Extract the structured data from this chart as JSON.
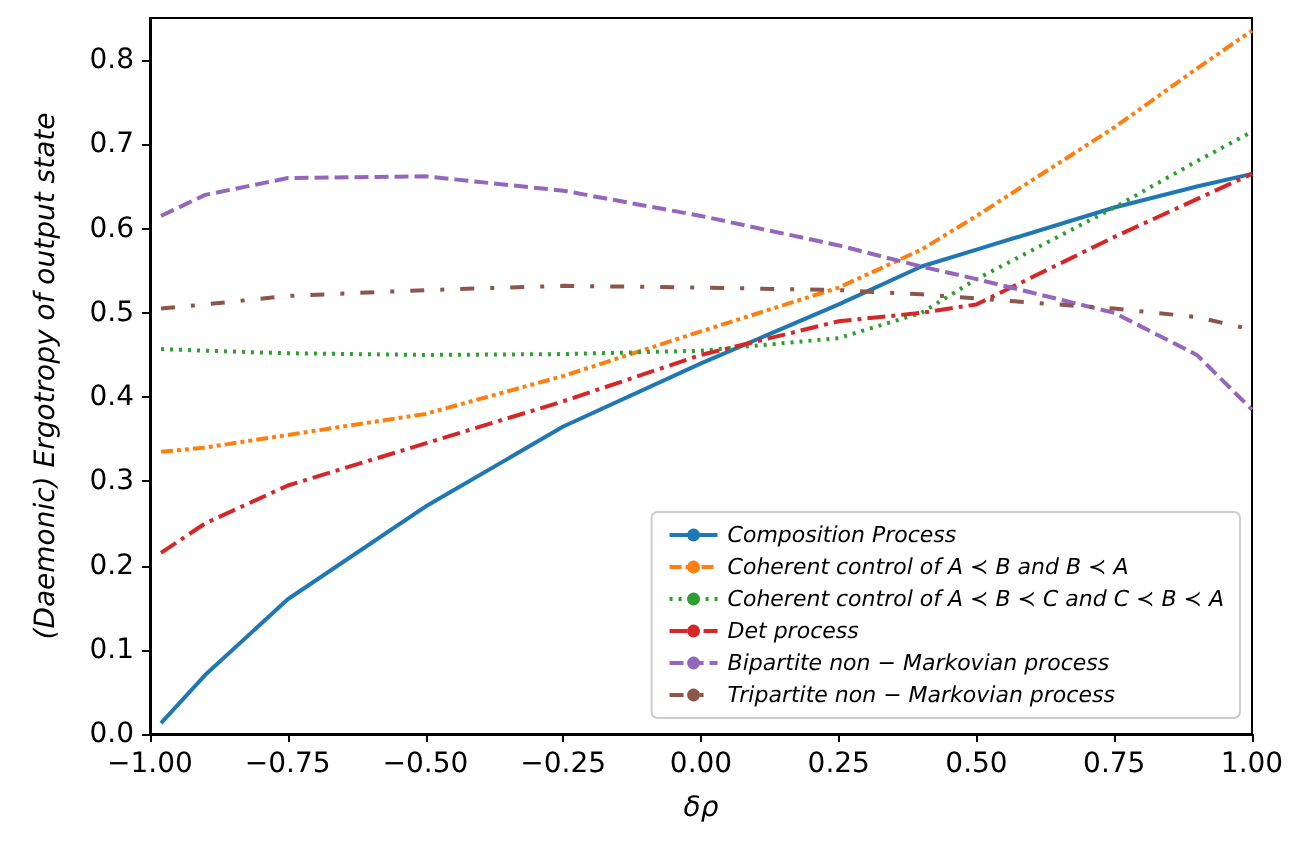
{
  "chart_data": {
    "type": "line",
    "xlabel": "δρ",
    "ylabel": "(Daemonic) Ergotropy of output state",
    "x": [
      -0.98,
      -0.9,
      -0.75,
      -0.5,
      -0.25,
      0,
      0.25,
      0.4,
      0.5,
      0.75,
      0.9,
      1
    ],
    "series": [
      {
        "name": "Composition Process",
        "color": "#1f77b4",
        "line_style": "solid",
        "values": [
          0.013,
          0.07,
          0.16,
          0.27,
          0.365,
          0.44,
          0.51,
          0.555,
          0.575,
          0.625,
          0.65,
          0.665
        ]
      },
      {
        "name": "Coherent control of A ≺ B and B ≺ A",
        "color": "#ff7f0e",
        "line_style": "dashdotdot",
        "values": [
          0.335,
          0.34,
          0.355,
          0.38,
          0.425,
          0.478,
          0.53,
          0.575,
          0.615,
          0.72,
          0.79,
          0.835
        ]
      },
      {
        "name": "Coherent control of A ≺ B ≺ C and C ≺ B ≺ A",
        "color": "#2ca02c",
        "line_style": "dotted",
        "values": [
          0.457,
          0.455,
          0.452,
          0.45,
          0.451,
          0.455,
          0.47,
          0.5,
          0.54,
          0.625,
          0.68,
          0.715
        ]
      },
      {
        "name": "Det process",
        "color": "#d62728",
        "line_style": "dashdot",
        "values": [
          0.215,
          0.25,
          0.295,
          0.345,
          0.395,
          0.45,
          0.49,
          0.5,
          0.51,
          0.59,
          0.635,
          0.665
        ]
      },
      {
        "name": "Bipartite non − Markovian process",
        "color": "#9467bd",
        "line_style": "dashed",
        "values": [
          0.615,
          0.64,
          0.66,
          0.662,
          0.645,
          0.615,
          0.58,
          0.555,
          0.54,
          0.5,
          0.45,
          0.385
        ]
      },
      {
        "name": "Tripartite non − Markovian process",
        "color": "#8c564b",
        "line_style": "loosedashdot",
        "values": [
          0.505,
          0.51,
          0.52,
          0.527,
          0.532,
          0.53,
          0.527,
          0.522,
          0.517,
          0.505,
          0.495,
          0.48
        ]
      }
    ],
    "xlim": [
      -1,
      1
    ],
    "xticks": [
      {
        "value": -1,
        "label": "−1.00"
      },
      {
        "value": -0.75,
        "label": "−0.75"
      },
      {
        "value": -0.5,
        "label": "−0.50"
      },
      {
        "value": -0.25,
        "label": "−0.25"
      },
      {
        "value": 0,
        "label": "0.00"
      },
      {
        "value": 0.25,
        "label": "0.25"
      },
      {
        "value": 0.5,
        "label": "0.50"
      },
      {
        "value": 0.75,
        "label": "0.75"
      },
      {
        "value": 1,
        "label": "1.00"
      }
    ],
    "ylim": [
      0,
      0.85
    ],
    "yticks": [
      {
        "value": 0,
        "label": "0.0"
      },
      {
        "value": 0.1,
        "label": "0.1"
      },
      {
        "value": 0.2,
        "label": "0.2"
      },
      {
        "value": 0.3,
        "label": "0.3"
      },
      {
        "value": 0.4,
        "label": "0.4"
      },
      {
        "value": 0.5,
        "label": "0.5"
      },
      {
        "value": 0.6,
        "label": "0.6"
      },
      {
        "value": 0.7,
        "label": "0.7"
      },
      {
        "value": 0.8,
        "label": "0.8"
      }
    ],
    "grid": false,
    "legend": "bottom right",
    "marker": "none"
  }
}
